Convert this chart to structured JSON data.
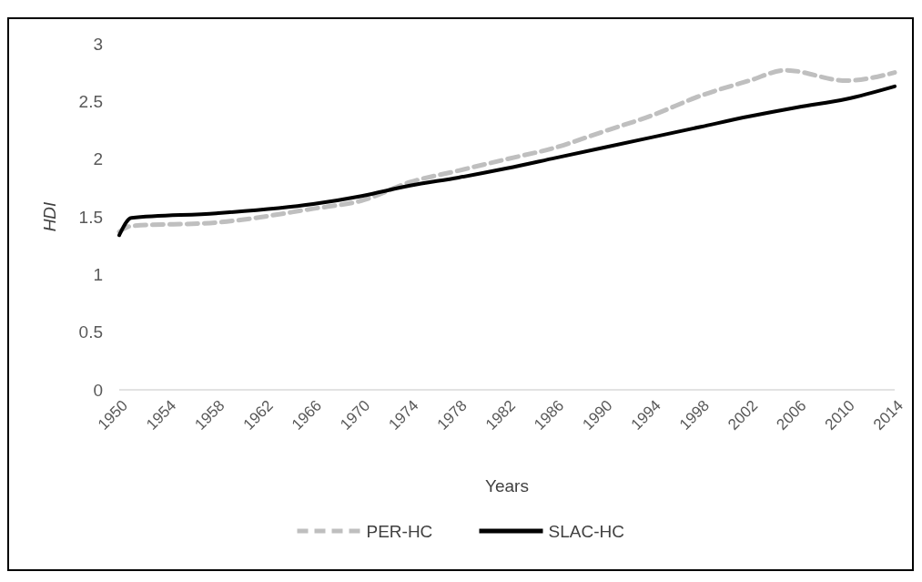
{
  "chart_data": {
    "type": "line",
    "xlabel": "Years",
    "ylabel": "HDI",
    "xlim": [
      1950,
      2014
    ],
    "ylim": [
      0,
      3
    ],
    "xticks": [
      1950,
      1954,
      1958,
      1962,
      1966,
      1970,
      1974,
      1978,
      1982,
      1986,
      1990,
      1994,
      1998,
      2002,
      2006,
      2010,
      2014
    ],
    "yticks": [
      0,
      {
        "value": 0.5,
        "label": "0.5"
      },
      1,
      {
        "value": 1.5,
        "label": "1.5"
      },
      2,
      {
        "value": 2.5,
        "label": "2.5"
      },
      3
    ],
    "legend": "bottom",
    "grid": false,
    "marker": "none",
    "series": [
      {
        "name": "PER-HC",
        "color": "#bfbfbf",
        "line_style": "dashed",
        "x": [
          1950,
          1951,
          1958,
          1966,
          1970,
          1974,
          1978,
          1982,
          1986,
          1990,
          1994,
          1998,
          2002,
          2005,
          2010,
          2014
        ],
        "values": [
          1.37,
          1.42,
          1.45,
          1.57,
          1.64,
          1.8,
          1.9,
          2.0,
          2.1,
          2.24,
          2.38,
          2.55,
          2.68,
          2.77,
          2.68,
          2.75
        ]
      },
      {
        "name": "SLAC-HC",
        "color": "#000000",
        "line_style": "solid",
        "x": [
          1950,
          1951,
          1958,
          1966,
          1970,
          1974,
          1978,
          1982,
          1986,
          1990,
          1994,
          1998,
          2002,
          2006,
          2010,
          2014
        ],
        "values": [
          1.34,
          1.49,
          1.53,
          1.61,
          1.68,
          1.77,
          1.84,
          1.92,
          2.01,
          2.1,
          2.19,
          2.28,
          2.37,
          2.45,
          2.52,
          2.63
        ]
      }
    ]
  }
}
